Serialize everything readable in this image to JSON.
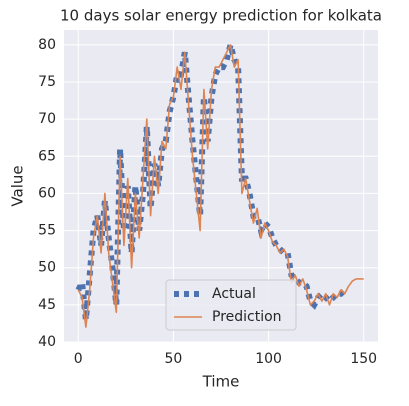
{
  "chart_data": {
    "type": "line",
    "title": "10 days solar energy prediction for kolkata",
    "xlabel": "Time",
    "ylabel": "Value",
    "x": [
      0,
      2,
      4,
      6,
      8,
      10,
      12,
      14,
      16,
      18,
      20,
      22,
      24,
      26,
      28,
      30,
      32,
      34,
      36,
      38,
      40,
      42,
      44,
      46,
      48,
      50,
      52,
      54,
      56,
      58,
      60,
      62,
      64,
      66,
      68,
      70,
      72,
      74,
      76,
      78,
      80,
      82,
      84,
      86,
      88,
      90,
      92,
      94,
      96,
      98,
      100,
      102,
      104,
      106,
      108,
      110,
      112,
      114,
      116,
      118,
      120,
      122,
      124,
      126,
      128,
      130,
      132,
      134,
      136,
      138,
      140,
      142,
      144,
      146,
      148,
      150
    ],
    "series": [
      {
        "name": "Actual",
        "color": "#4c72b0",
        "style": "dotted",
        "values": [
          47,
          48,
          43,
          49,
          55,
          57,
          53,
          59,
          54,
          50,
          45,
          66,
          55,
          61,
          52,
          61,
          55,
          60,
          69,
          58,
          64,
          61,
          66,
          67,
          71,
          73,
          76,
          76,
          79,
          73,
          67,
          62,
          57,
          73,
          67,
          73,
          76,
          77,
          77,
          78,
          80,
          78,
          77,
          62,
          62,
          60,
          57,
          57,
          55,
          56,
          55.5,
          54,
          53,
          52.5,
          52,
          52,
          49,
          48.5,
          48,
          48,
          47.5,
          45.5,
          45,
          46,
          46.5,
          46,
          45.5,
          46,
          46.5,
          46.5,
          47,
          null,
          null,
          null,
          null,
          null
        ]
      },
      {
        "name": "Prediction",
        "color": "#dd8452",
        "style": "solid",
        "values": [
          47,
          46,
          42,
          47,
          54,
          57,
          52,
          60,
          52,
          48,
          44,
          65,
          53,
          62,
          50,
          60,
          54,
          62,
          70,
          57,
          65,
          60,
          67,
          66,
          72,
          73,
          77,
          74,
          79,
          72,
          65,
          60,
          55,
          74,
          66,
          74,
          77,
          77,
          78,
          79,
          80,
          77,
          78,
          60,
          62,
          59,
          56,
          58,
          54,
          56,
          55,
          53.5,
          53,
          52,
          52.5,
          51.5,
          48,
          49,
          47.5,
          48.5,
          47,
          45,
          45.5,
          46.5,
          45.5,
          46.5,
          45,
          46.5,
          46,
          47,
          46.5,
          47.5,
          48.2,
          48.5,
          48.5,
          48.5
        ]
      }
    ],
    "xlim": [
      -7.5,
      157.5
    ],
    "ylim": [
      40,
      82
    ],
    "xticks": [
      0,
      50,
      100,
      150
    ],
    "yticks": [
      40,
      45,
      50,
      55,
      60,
      65,
      70,
      75,
      80
    ],
    "grid": true,
    "legend": "lower center"
  }
}
